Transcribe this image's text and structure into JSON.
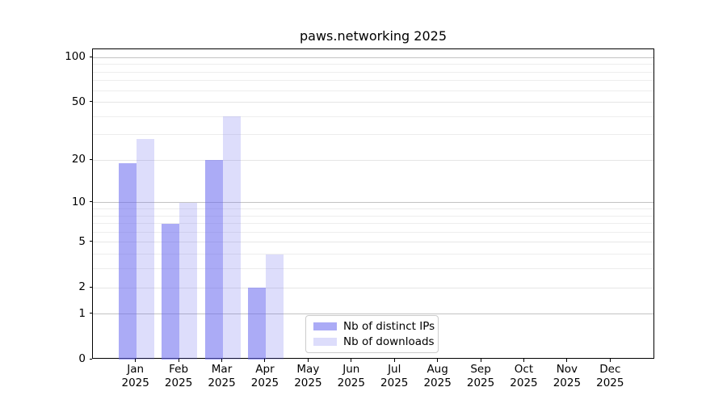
{
  "title": "paws.networking 2025",
  "chart_data": {
    "type": "bar",
    "title": "paws.networking 2025",
    "categories": [
      "Jan",
      "Feb",
      "Mar",
      "Apr",
      "May",
      "Jun",
      "Jul",
      "Aug",
      "Sep",
      "Oct",
      "Nov",
      "Dec"
    ],
    "year_label": "2025",
    "series": [
      {
        "name": "Nb of distinct IPs",
        "color": "#6666ee",
        "alpha": 0.55,
        "values": [
          19,
          7,
          20,
          2,
          0,
          0,
          0,
          0,
          0,
          0,
          0,
          0
        ]
      },
      {
        "name": "Nb of downloads",
        "color": "#6666ee",
        "alpha": 0.22,
        "values": [
          28,
          10,
          40,
          4,
          0,
          0,
          0,
          0,
          0,
          0,
          0,
          0
        ]
      }
    ],
    "xlabel": "",
    "ylabel": "",
    "y_scale": "log10(1+v)",
    "y_axis_max": 113.7,
    "y_ticks": [
      0,
      1,
      2,
      5,
      10,
      20,
      50,
      100
    ],
    "y_major_gridlines": [
      1,
      10,
      100
    ],
    "y_minor_gridlines": [
      3,
      4,
      6,
      7,
      8,
      9,
      30,
      40,
      60,
      70,
      80,
      90
    ],
    "grid": true,
    "legend_position": "lower center"
  },
  "legend": {
    "items": [
      "Nb of distinct IPs",
      "Nb of downloads"
    ]
  },
  "colors": {
    "bar_dark": "#ababf5",
    "bar_light": "#ddddfb",
    "grid_major": "#c3c3c3",
    "grid_minor": "#e6e6e6",
    "axis": "#000000",
    "legend_border": "#cccccc"
  }
}
